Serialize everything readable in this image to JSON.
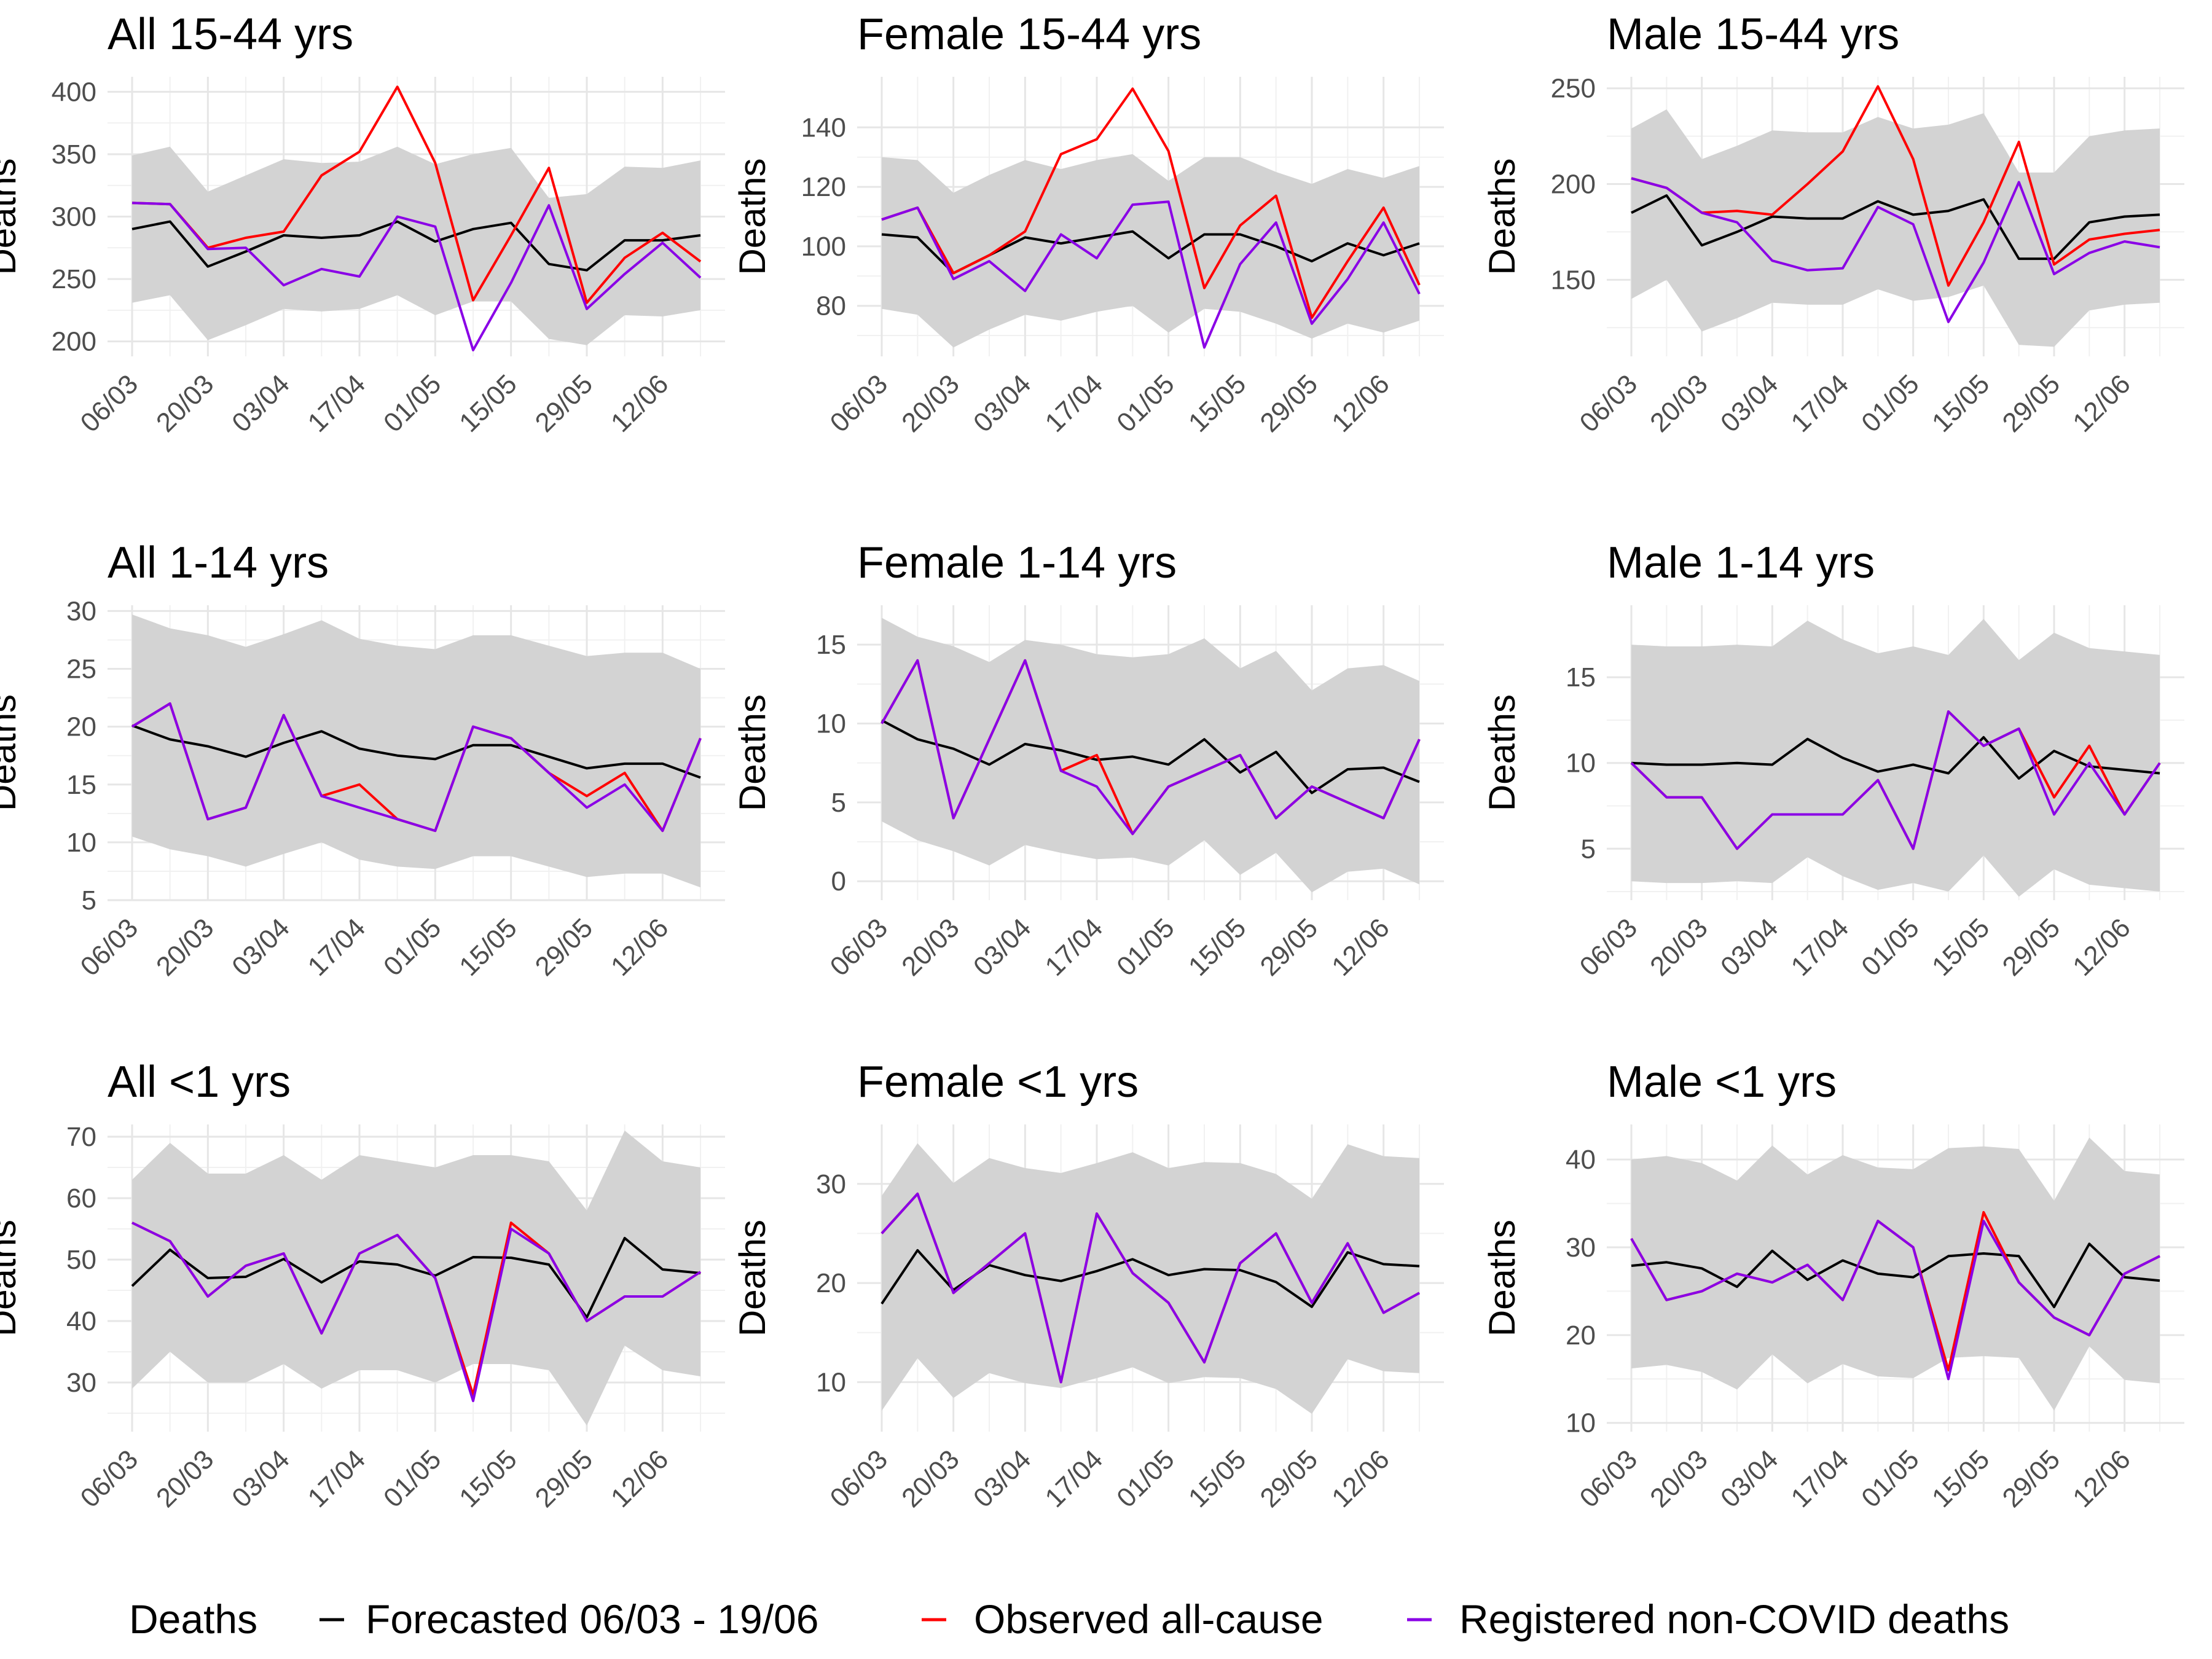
{
  "figure": {
    "ylabel": "Deaths",
    "x_tick_labels": [
      "06/03",
      "20/03",
      "03/04",
      "17/04",
      "01/05",
      "15/05",
      "29/05",
      "12/06"
    ],
    "colors": {
      "forecast": "#000000",
      "observed": "#ff0000",
      "registered": "#8a00e6",
      "band": "#d3d3d3"
    }
  },
  "legend": {
    "title": "Deaths",
    "items": [
      {
        "label": "Forecasted 06/03 - 19/06",
        "color": "#000000"
      },
      {
        "label": "Observed all-cause",
        "color": "#ff0000"
      },
      {
        "label": "Registered non-COVID deaths",
        "color": "#8a00e6"
      }
    ]
  },
  "chart_data": [
    {
      "type": "line",
      "title": "All 15-44 yrs",
      "ylabel": "Deaths",
      "ylim": [
        188,
        412
      ],
      "yticks": [
        200,
        250,
        300,
        350,
        400
      ],
      "upper": [
        349,
        356,
        320,
        333,
        346,
        343,
        344,
        356,
        342,
        350,
        355,
        315,
        318,
        340,
        339,
        345
      ],
      "lower": [
        231,
        237,
        201,
        213,
        226,
        224,
        226,
        237,
        221,
        232,
        232,
        202,
        197,
        221,
        220,
        225
      ],
      "series": [
        {
          "name": "Forecasted 06/03 - 19/06",
          "values": [
            290,
            296,
            260,
            272,
            285,
            283,
            285,
            296,
            280,
            290,
            295,
            262,
            257,
            281,
            281,
            285
          ]
        },
        {
          "name": "Observed all-cause",
          "values": [
            311,
            310,
            275,
            283,
            288,
            333,
            352,
            404,
            343,
            233,
            285,
            339,
            231,
            267,
            287,
            264
          ]
        },
        {
          "name": "Registered non-COVID deaths",
          "values": [
            311,
            310,
            274,
            275,
            245,
            258,
            252,
            300,
            292,
            193,
            247,
            309,
            226,
            254,
            279,
            251
          ]
        }
      ]
    },
    {
      "type": "line",
      "title": "Female 15-44 yrs",
      "ylabel": "Deaths",
      "ylim": [
        63,
        157
      ],
      "yticks": [
        80,
        100,
        120,
        140
      ],
      "upper": [
        130,
        129,
        118,
        124,
        129,
        126,
        129,
        131,
        122,
        130,
        130,
        125,
        121,
        126,
        123,
        127
      ],
      "lower": [
        79,
        77,
        66,
        72,
        77,
        75,
        78,
        80,
        71,
        79,
        78,
        74,
        69,
        74,
        71,
        75
      ],
      "series": [
        {
          "name": "Forecasted 06/03 - 19/06",
          "values": [
            104,
            103,
            91,
            97,
            103,
            101,
            103,
            105,
            96,
            104,
            104,
            100,
            95,
            101,
            97,
            101
          ]
        },
        {
          "name": "Observed all-cause",
          "values": [
            109,
            113,
            91,
            97,
            105,
            131,
            136,
            153,
            132,
            86,
            107,
            117,
            76,
            95,
            113,
            87
          ]
        },
        {
          "name": "Registered non-COVID deaths",
          "values": [
            109,
            113,
            89,
            95,
            85,
            104,
            96,
            114,
            115,
            66,
            94,
            108,
            74,
            89,
            108,
            84
          ]
        }
      ]
    },
    {
      "type": "line",
      "title": "Male 15-44 yrs",
      "ylabel": "Deaths",
      "ylim": [
        110,
        256
      ],
      "yticks": [
        150,
        200,
        250
      ],
      "upper": [
        229,
        239,
        213,
        220,
        228,
        227,
        227,
        235,
        229,
        231,
        237,
        206,
        206,
        225,
        228,
        229
      ],
      "lower": [
        140,
        150,
        123,
        130,
        138,
        137,
        137,
        145,
        139,
        141,
        147,
        116,
        115,
        134,
        137,
        138
      ],
      "series": [
        {
          "name": "Forecasted 06/03 - 19/06",
          "values": [
            185,
            194,
            168,
            175,
            183,
            182,
            182,
            191,
            184,
            186,
            192,
            161,
            161,
            180,
            183,
            184
          ]
        },
        {
          "name": "Observed all-cause",
          "values": [
            203,
            198,
            185,
            186,
            184,
            200,
            217,
            251,
            213,
            147,
            180,
            222,
            158,
            171,
            174,
            176
          ]
        },
        {
          "name": "Registered non-COVID deaths",
          "values": [
            203,
            198,
            185,
            180,
            160,
            155,
            156,
            188,
            179,
            128,
            159,
            201,
            153,
            164,
            170,
            167
          ]
        }
      ]
    },
    {
      "type": "line",
      "title": "All 1-14 yrs",
      "ylabel": "Deaths",
      "ylim": [
        5,
        30.5
      ],
      "yticks": [
        5,
        10,
        15,
        20,
        25,
        30
      ],
      "upper": [
        29.7,
        28.5,
        27.9,
        26.9,
        28.0,
        29.2,
        27.6,
        27.0,
        26.7,
        27.9,
        27.9,
        27.0,
        26.1,
        26.4,
        26.4,
        25.0
      ],
      "lower": [
        10.5,
        9.4,
        8.8,
        7.9,
        9.0,
        10.0,
        8.5,
        7.9,
        7.7,
        8.8,
        8.8,
        7.9,
        7.0,
        7.3,
        7.3,
        6.1
      ],
      "series": [
        {
          "name": "Forecasted 06/03 - 19/06",
          "values": [
            20.1,
            18.9,
            18.3,
            17.4,
            18.6,
            19.6,
            18.1,
            17.5,
            17.2,
            18.4,
            18.4,
            17.4,
            16.4,
            16.8,
            16.8,
            15.6
          ]
        },
        {
          "name": "Observed all-cause",
          "values": [
            20,
            22,
            12,
            13,
            21,
            14,
            15,
            12,
            11,
            20,
            19,
            16,
            14,
            16,
            11,
            19
          ]
        },
        {
          "name": "Registered non-COVID deaths",
          "values": [
            20,
            22,
            12,
            13,
            21,
            14,
            13,
            12,
            11,
            20,
            19,
            16,
            13,
            15,
            11,
            19
          ]
        }
      ]
    },
    {
      "type": "line",
      "title": "Female 1-14 yrs",
      "ylabel": "Deaths",
      "ylim": [
        -1.2,
        17.5
      ],
      "yticks": [
        0,
        5,
        10,
        15
      ],
      "upper": [
        16.7,
        15.5,
        14.9,
        13.9,
        15.3,
        15.0,
        14.4,
        14.2,
        14.4,
        15.4,
        13.5,
        14.6,
        12.1,
        13.5,
        13.7,
        12.7
      ],
      "lower": [
        3.8,
        2.6,
        1.9,
        1.0,
        2.3,
        1.8,
        1.4,
        1.5,
        1.0,
        2.6,
        0.4,
        1.8,
        -0.7,
        0.6,
        0.8,
        -0.2
      ],
      "series": [
        {
          "name": "Forecasted 06/03 - 19/06",
          "values": [
            10.2,
            9.0,
            8.4,
            7.4,
            8.7,
            8.3,
            7.7,
            7.9,
            7.4,
            9.0,
            6.9,
            8.2,
            5.6,
            7.1,
            7.2,
            6.3
          ]
        },
        {
          "name": "Observed all-cause",
          "values": [
            10,
            14,
            4,
            9,
            14,
            7,
            8,
            3,
            6,
            7,
            8,
            4,
            6,
            5,
            4,
            9
          ]
        },
        {
          "name": "Registered non-COVID deaths",
          "values": [
            10,
            14,
            4,
            9,
            14,
            7,
            6,
            3,
            6,
            7,
            8,
            4,
            6,
            5,
            4,
            9
          ]
        }
      ]
    },
    {
      "type": "line",
      "title": "Male 1-14 yrs",
      "ylabel": "Deaths",
      "ylim": [
        2,
        19.2
      ],
      "yticks": [
        5,
        10,
        15
      ],
      "upper": [
        16.9,
        16.8,
        16.8,
        16.9,
        16.8,
        18.3,
        17.2,
        16.4,
        16.8,
        16.3,
        18.4,
        16.0,
        17.6,
        16.7,
        16.5,
        16.3
      ],
      "lower": [
        3.1,
        3.0,
        3.0,
        3.1,
        3.0,
        4.5,
        3.4,
        2.6,
        3.0,
        2.5,
        4.6,
        2.2,
        3.8,
        2.9,
        2.7,
        2.5
      ],
      "series": [
        {
          "name": "Forecasted 06/03 - 19/06",
          "values": [
            10.0,
            9.9,
            9.9,
            10.0,
            9.9,
            11.4,
            10.3,
            9.5,
            9.9,
            9.4,
            11.5,
            9.1,
            10.7,
            9.8,
            9.6,
            9.4
          ]
        },
        {
          "name": "Observed all-cause",
          "values": [
            10,
            8,
            8,
            5,
            7,
            7,
            7,
            9,
            5,
            13,
            11,
            12,
            8,
            11,
            7,
            10
          ]
        },
        {
          "name": "Registered non-COVID deaths",
          "values": [
            10,
            8,
            8,
            5,
            7,
            7,
            7,
            9,
            5,
            13,
            11,
            12,
            7,
            10,
            7,
            10
          ]
        }
      ]
    },
    {
      "type": "line",
      "title": "All <1 yrs",
      "ylabel": "Deaths",
      "ylim": [
        22,
        72
      ],
      "yticks": [
        30,
        40,
        50,
        60,
        70
      ],
      "upper": [
        63,
        69,
        64,
        64,
        67,
        63,
        67,
        66,
        65,
        67,
        67,
        66,
        58,
        71,
        66,
        65
      ],
      "lower": [
        29,
        35,
        30,
        30,
        33,
        29,
        32,
        32,
        30,
        33,
        33,
        32,
        23,
        36,
        32,
        31
      ],
      "series": [
        {
          "name": "Forecasted 06/03 - 19/06",
          "values": [
            45.7,
            51.6,
            47.0,
            47.2,
            50.1,
            46.3,
            49.7,
            49.2,
            47.4,
            50.4,
            50.3,
            49.2,
            40.6,
            53.5,
            48.4,
            47.8
          ]
        },
        {
          "name": "Observed all-cause",
          "values": [
            56,
            53,
            44,
            49,
            51,
            38,
            51,
            54,
            47,
            28,
            56,
            51,
            40,
            44,
            44,
            48
          ]
        },
        {
          "name": "Registered non-COVID deaths",
          "values": [
            56,
            53,
            44,
            49,
            51,
            38,
            51,
            54,
            47,
            27,
            55,
            51,
            40,
            44,
            44,
            48
          ]
        }
      ]
    },
    {
      "type": "line",
      "title": "Female <1 yrs",
      "ylabel": "Deaths",
      "ylim": [
        5,
        36
      ],
      "yticks": [
        10,
        20,
        30
      ],
      "upper": [
        28.8,
        34.1,
        30.1,
        32.6,
        31.6,
        31.1,
        32.1,
        33.2,
        31.6,
        32.2,
        32.1,
        31.0,
        28.5,
        34.0,
        32.8,
        32.6
      ],
      "lower": [
        7.1,
        12.4,
        8.4,
        10.9,
        9.9,
        9.4,
        10.4,
        11.5,
        9.9,
        10.5,
        10.4,
        9.3,
        6.8,
        12.3,
        11.1,
        10.9
      ],
      "series": [
        {
          "name": "Forecasted 06/03 - 19/06",
          "values": [
            17.9,
            23.3,
            19.3,
            21.8,
            20.8,
            20.2,
            21.2,
            22.4,
            20.8,
            21.4,
            21.3,
            20.1,
            17.6,
            23.1,
            21.9,
            21.7
          ]
        },
        {
          "name": "Observed all-cause",
          "values": [
            25,
            29,
            19,
            22,
            25,
            10,
            27,
            21,
            18,
            12,
            22,
            25,
            18,
            24,
            17,
            19
          ]
        },
        {
          "name": "Registered non-COVID deaths",
          "values": [
            25,
            29,
            19,
            22,
            25,
            10,
            27,
            21,
            18,
            12,
            22,
            25,
            18,
            24,
            17,
            19
          ]
        }
      ]
    },
    {
      "type": "line",
      "title": "Male <1 yrs",
      "ylabel": "Deaths",
      "ylim": [
        9,
        44
      ],
      "yticks": [
        10,
        20,
        30,
        40
      ],
      "upper": [
        40,
        40.4,
        39.6,
        37.6,
        41.6,
        38.3,
        40.5,
        39.1,
        38.9,
        41.3,
        41.5,
        41.2,
        35.3,
        42.5,
        38.7,
        38.3
      ],
      "lower": [
        16.2,
        16.6,
        15.8,
        13.8,
        17.8,
        14.5,
        16.7,
        15.3,
        15.1,
        17.4,
        17.6,
        17.4,
        11.4,
        18.7,
        14.9,
        14.5
      ],
      "series": [
        {
          "name": "Forecasted 06/03 - 19/06",
          "values": [
            27.9,
            28.3,
            27.6,
            25.5,
            29.6,
            26.3,
            28.5,
            27.0,
            26.6,
            29.0,
            29.3,
            29.0,
            23.2,
            30.4,
            26.6,
            26.2
          ]
        },
        {
          "name": "Observed all-cause",
          "values": [
            31,
            24,
            25,
            27,
            26,
            28,
            24,
            33,
            30,
            16,
            34,
            26,
            22,
            20,
            27,
            29
          ]
        },
        {
          "name": "Registered non-COVID deaths",
          "values": [
            31,
            24,
            25,
            27,
            26,
            28,
            24,
            33,
            30,
            15,
            33,
            26,
            22,
            20,
            27,
            29
          ]
        }
      ]
    }
  ]
}
